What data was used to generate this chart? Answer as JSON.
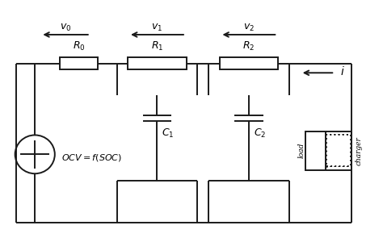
{
  "bg_color": "#ffffff",
  "line_color": "#1a1a1a",
  "fig_width": 4.74,
  "fig_height": 3.0,
  "dpi": 100
}
